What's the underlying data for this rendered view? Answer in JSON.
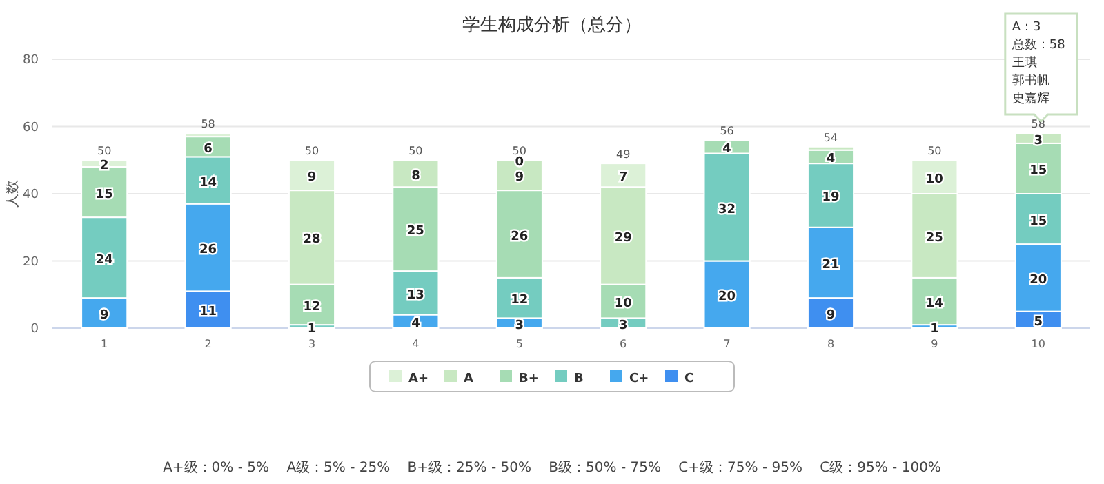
{
  "chart_data": {
    "type": "bar",
    "stacked": true,
    "title": "学生构成分析（总分）",
    "ylabel": "人数",
    "categories": [
      "1",
      "2",
      "3",
      "4",
      "5",
      "6",
      "7",
      "8",
      "9",
      "10"
    ],
    "ylim": [
      0,
      80
    ],
    "yticks": [
      0,
      20,
      40,
      60,
      80
    ],
    "grid": "y",
    "legend": "bottom",
    "series": [
      {
        "name": "C",
        "color": "#3f8ff0",
        "values": [
          null,
          11,
          null,
          null,
          null,
          null,
          null,
          9,
          null,
          5
        ],
        "value_labels": [
          null,
          "11",
          null,
          null,
          null,
          null,
          null,
          "9",
          null,
          "5"
        ]
      },
      {
        "name": "C+",
        "color": "#45a8ee",
        "values": [
          9,
          26,
          null,
          4,
          3,
          null,
          20,
          21,
          1,
          20
        ],
        "value_labels": [
          "9",
          "26",
          null,
          "4",
          "3",
          null,
          "20",
          "21",
          "1",
          "20"
        ]
      },
      {
        "name": "B",
        "color": "#74ccc0",
        "values": [
          24,
          14,
          1,
          13,
          12,
          3,
          32,
          19,
          null,
          15
        ],
        "value_labels": [
          "24",
          "14",
          "1",
          "13",
          "12",
          "3",
          "32",
          "19",
          null,
          "15"
        ]
      },
      {
        "name": "B+",
        "color": "#a6dcb4",
        "values": [
          15,
          6,
          12,
          25,
          26,
          10,
          4,
          4,
          14,
          15
        ],
        "value_labels": [
          "15",
          "6",
          "12",
          "25",
          "26",
          "10",
          "4",
          "4",
          "14",
          "15"
        ]
      },
      {
        "name": "A",
        "color": "#c8e8c2",
        "values": [
          null,
          null,
          28,
          8,
          9,
          29,
          null,
          1,
          25,
          3
        ],
        "value_labels": [
          null,
          null,
          "28",
          "8",
          "9",
          "29",
          null,
          null,
          "25",
          "3"
        ]
      },
      {
        "name": "A+",
        "color": "#dcf1d7",
        "values": [
          2,
          1,
          9,
          null,
          0,
          7,
          null,
          null,
          10,
          null
        ],
        "value_labels": [
          "2",
          null,
          "9",
          null,
          "0",
          "7",
          null,
          null,
          "10",
          null
        ]
      }
    ],
    "totals": [
      "50",
      "58",
      "50",
      "50",
      "50",
      "49",
      "56",
      "54",
      "50",
      "58"
    ],
    "annotations": [
      "A：3",
      "总数：58",
      "王琪",
      "郭书帆",
      "史嘉辉",
      "A+级：0% - 5%    A级：5% - 25%    B+级：25% - 50%    B级：50% - 75%    C+级：75% - 95%    C级：95% - 100%"
    ]
  }
}
